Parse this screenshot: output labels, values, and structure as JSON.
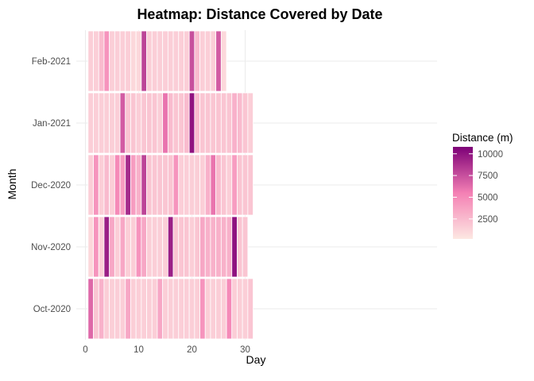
{
  "chart_data": {
    "type": "heatmap",
    "title": "Heatmap: Distance Covered by Date",
    "xlabel": "Day",
    "ylabel": "Month",
    "xlim": [
      0,
      32
    ],
    "x_ticks": [
      0,
      10,
      20,
      30
    ],
    "rows": [
      "Oct-2020",
      "Nov-2020",
      "Dec-2020",
      "Jan-2021",
      "Feb-2021"
    ],
    "values": {
      "Oct-2020": [
        6500,
        2000,
        3000,
        1500,
        1500,
        1500,
        1500,
        3500,
        1500,
        1500,
        1500,
        1500,
        1500,
        3500,
        1500,
        1500,
        1500,
        1500,
        1500,
        1500,
        1500,
        4500,
        1500,
        1500,
        1500,
        1500,
        5000,
        1500,
        1500,
        1500,
        2000
      ],
      "Nov-2020": [
        1000,
        4500,
        1500,
        9500,
        3500,
        1500,
        3500,
        1500,
        1500,
        4500,
        3500,
        1500,
        1500,
        1500,
        1500,
        9500,
        2000,
        2000,
        2000,
        1500,
        2000,
        3500,
        3000,
        3000,
        3000,
        3000,
        3000,
        10000,
        2000,
        2000
      ],
      "Dec-2020": [
        1500,
        4500,
        1500,
        2500,
        1500,
        5000,
        4000,
        9000,
        4000,
        3000,
        8000,
        2000,
        2000,
        2000,
        2000,
        2000,
        4500,
        1500,
        1500,
        1500,
        1500,
        1500,
        3000,
        6000,
        2500,
        2000,
        1500,
        4000,
        2000,
        2000,
        2000
      ],
      "Jan-2021": [
        1500,
        1500,
        1500,
        1500,
        1500,
        1500,
        7000,
        2000,
        2000,
        1500,
        2000,
        2000,
        2000,
        1500,
        6000,
        2500,
        2000,
        2000,
        2500,
        10000,
        2500,
        2000,
        2000,
        2000,
        2000,
        2000,
        2000,
        3000,
        2500,
        2000,
        1500
      ],
      "Feb-2021": [
        1500,
        1500,
        2500,
        4500,
        1500,
        1500,
        1500,
        1500,
        1000,
        1000,
        8000,
        1500,
        1500,
        1500,
        1500,
        1500,
        1500,
        1500,
        1500,
        7500,
        2500,
        1500,
        1500,
        1500,
        7000,
        1000
      ]
    },
    "legend": {
      "title": "Distance (m)",
      "breaks": [
        2500,
        5000,
        7500,
        10000
      ],
      "range": [
        200,
        10800
      ],
      "low_color": "#fde8e2",
      "mid_color": "#f480b4",
      "high_color": "#7d0077",
      "placement": "right"
    },
    "grid": true,
    "panel_background": "#ffffff"
  }
}
